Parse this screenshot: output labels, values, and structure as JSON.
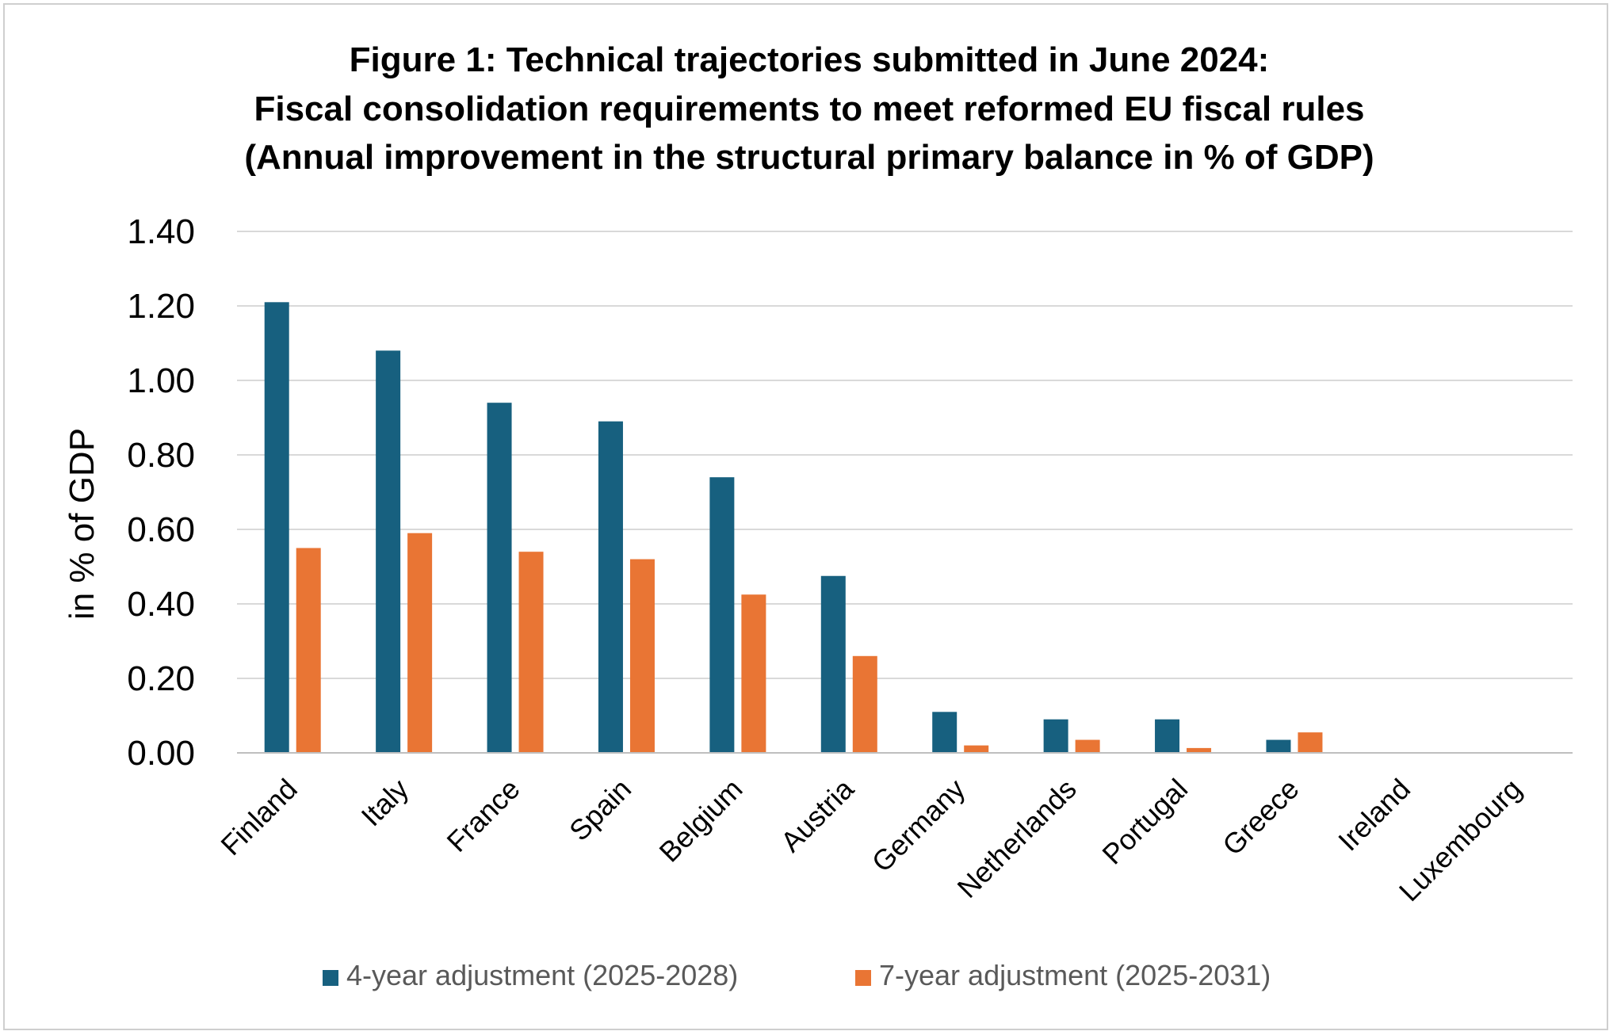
{
  "chart_data": {
    "type": "bar",
    "title_lines": [
      "Figure 1: Technical trajectories submitted in June 2024:",
      "Fiscal consolidation requirements to meet reformed EU fiscal rules",
      "(Annual improvement in the structural primary balance in % of GDP)"
    ],
    "xlabel": "",
    "ylabel": "in % of GDP",
    "ylim": [
      0,
      1.4
    ],
    "yticks": [
      "0.00",
      "0.20",
      "0.40",
      "0.60",
      "0.80",
      "1.00",
      "1.20",
      "1.40"
    ],
    "ytick_values": [
      0,
      0.2,
      0.4,
      0.6,
      0.8,
      1.0,
      1.2,
      1.4
    ],
    "grid": true,
    "legend_position": "bottom",
    "categories": [
      "Finland",
      "Italy",
      "France",
      "Spain",
      "Belgium",
      "Austria",
      "Germany",
      "Netherlands",
      "Portugal",
      "Greece",
      "Ireland",
      "Luxembourg"
    ],
    "series": [
      {
        "name": "4-year adjustment (2025-2028)",
        "color": "#17607f",
        "values": [
          1.21,
          1.08,
          0.94,
          0.89,
          0.74,
          0.475,
          0.11,
          0.09,
          0.09,
          0.035,
          0,
          0
        ]
      },
      {
        "name": "7-year adjustment (2025-2031)",
        "color": "#e97534",
        "values": [
          0.55,
          0.59,
          0.54,
          0.52,
          0.425,
          0.26,
          0.02,
          0.035,
          0.013,
          0.055,
          0,
          0
        ]
      }
    ]
  }
}
